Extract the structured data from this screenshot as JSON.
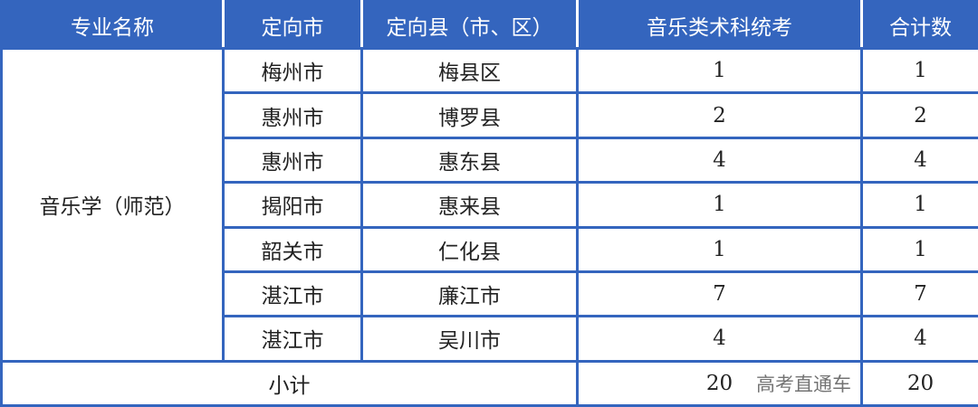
{
  "headers": [
    "专业名称",
    "定向市",
    "定向县（市、区）",
    "音乐类术科统考",
    "合计数"
  ],
  "major": "音乐学（师范）",
  "rows": [
    {
      "city": "梅州市",
      "county": "梅县区",
      "exam": "1",
      "total": "1"
    },
    {
      "city": "惠州市",
      "county": "博罗县",
      "exam": "2",
      "total": "2"
    },
    {
      "city": "惠州市",
      "county": "惠东县",
      "exam": "4",
      "total": "4"
    },
    {
      "city": "揭阳市",
      "county": "惠来县",
      "exam": "1",
      "total": "1"
    },
    {
      "city": "韶关市",
      "county": "仁化县",
      "exam": "1",
      "total": "1"
    },
    {
      "city": "湛江市",
      "county": "廉江市",
      "exam": "7",
      "total": "7"
    },
    {
      "city": "湛江市",
      "county": "吴川市",
      "exam": "4",
      "total": "4"
    }
  ],
  "subtotal": {
    "label": "小计",
    "exam": "20",
    "total": "20"
  },
  "watermark": "高考直通车",
  "colors": {
    "header_bg": "#3465be",
    "border": "#3465be"
  }
}
